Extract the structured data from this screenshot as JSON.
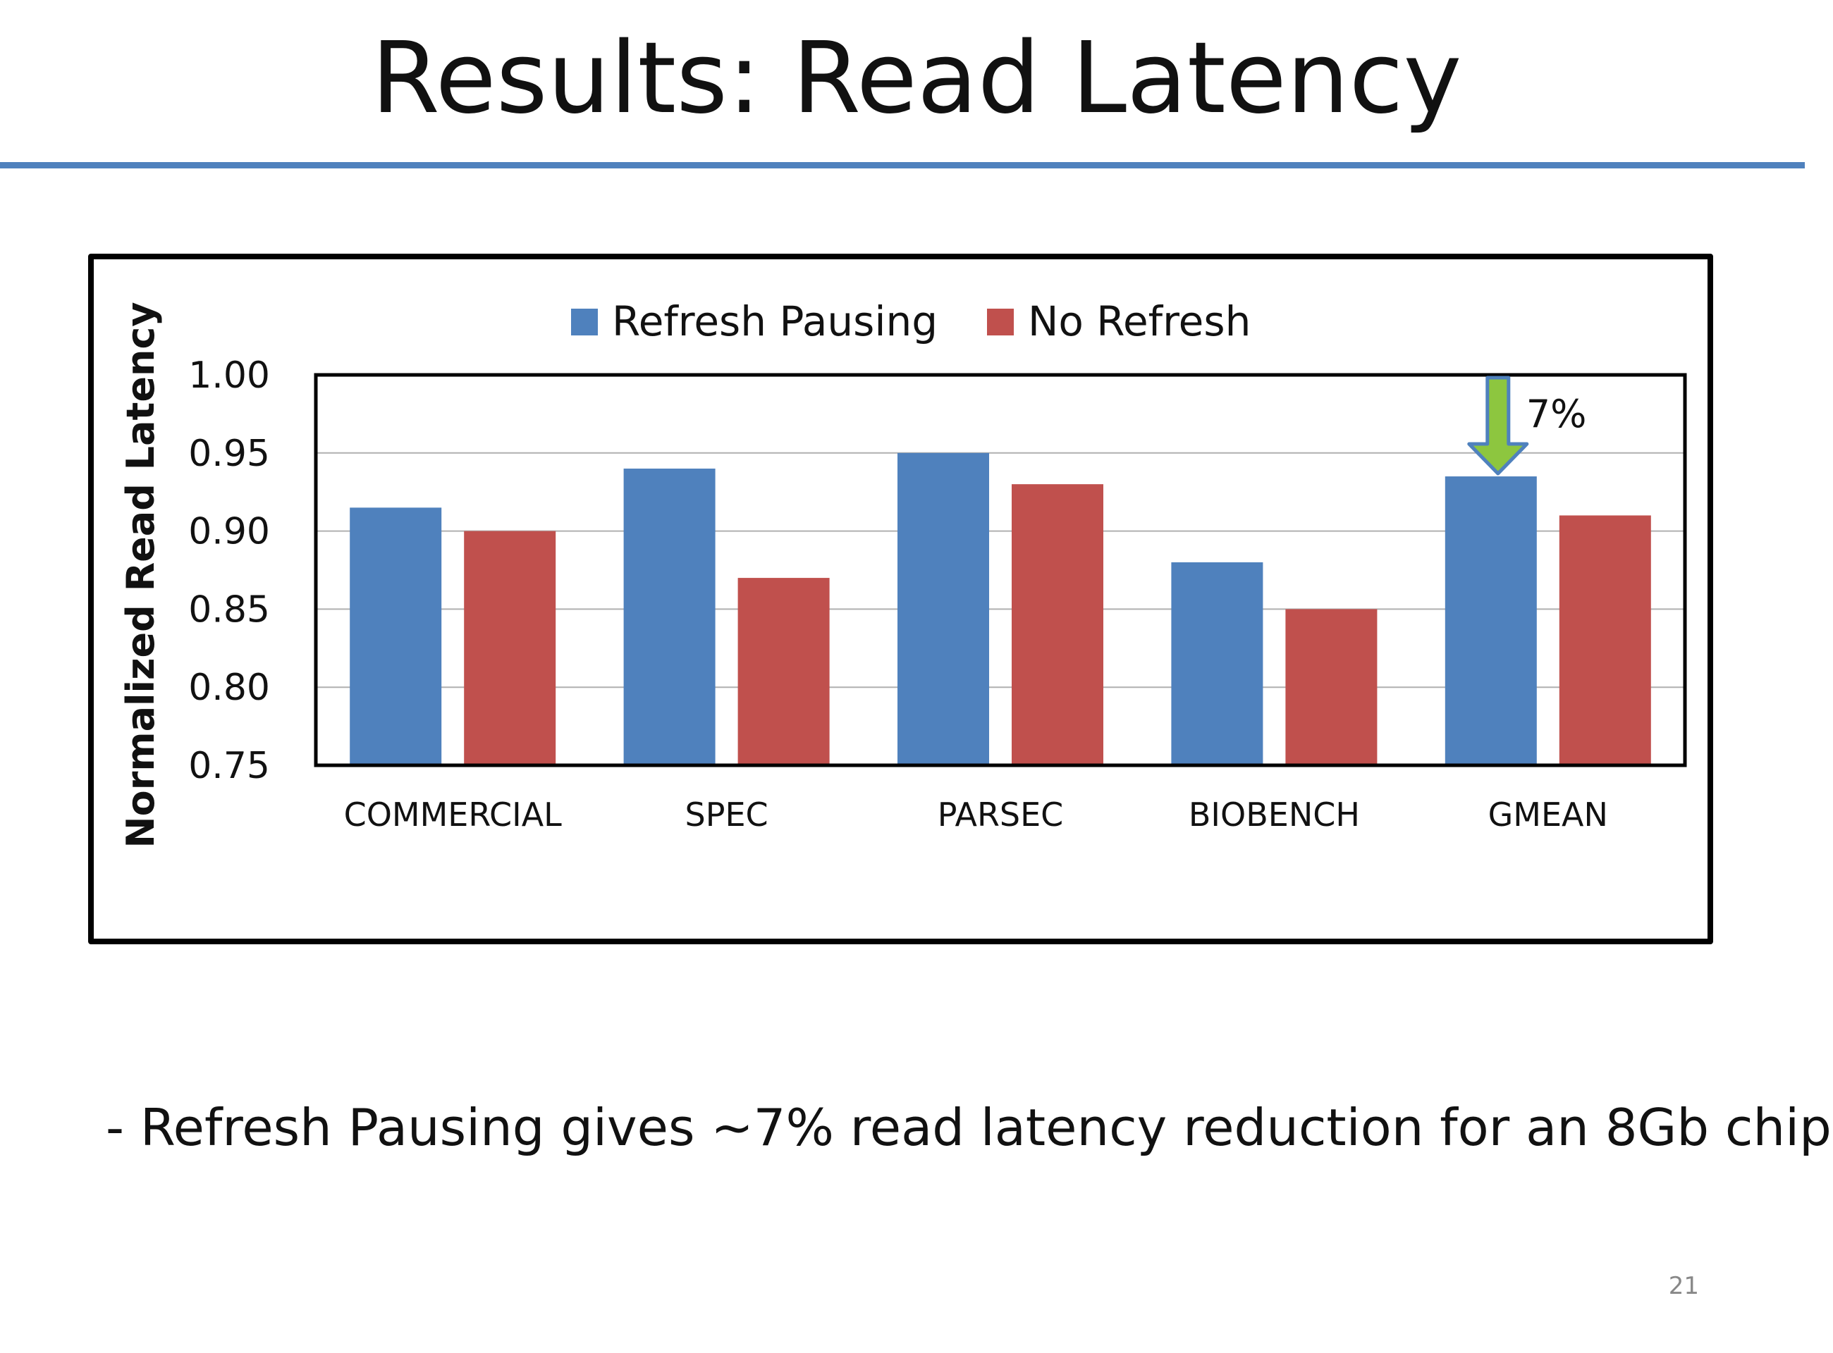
{
  "slide": {
    "title": "Results: Read Latency",
    "bullet": "- Refresh Pausing gives ~7% read latency reduction for an 8Gb chip",
    "page_number": "21"
  },
  "colors": {
    "accent_rule": "#4f81bd",
    "series_refresh_pausing": "#4f81bd",
    "series_no_refresh": "#c0504d",
    "arrow_fill": "#8dc63f",
    "arrow_stroke": "#4f81bd",
    "gridline": "#b0b0b0"
  },
  "chart_data": {
    "type": "bar",
    "title": "",
    "xlabel": "",
    "ylabel": "Normalized Read Latency",
    "categories": [
      "COMMERCIAL",
      "SPEC",
      "PARSEC",
      "BIOBENCH",
      "GMEAN"
    ],
    "series": [
      {
        "name": "Refresh Pausing",
        "values": [
          0.915,
          0.94,
          0.95,
          0.88,
          0.935
        ]
      },
      {
        "name": "No Refresh",
        "values": [
          0.9,
          0.87,
          0.93,
          0.85,
          0.91
        ]
      }
    ],
    "ylim": [
      0.75,
      1.0
    ],
    "yticks": [
      0.75,
      0.8,
      0.85,
      0.9,
      0.95,
      1.0
    ],
    "ytick_labels": [
      "0.75",
      "0.80",
      "0.85",
      "0.90",
      "0.95",
      "1.00"
    ],
    "grid": true,
    "legend": "top-center",
    "annotation": {
      "text": "7%",
      "category": "GMEAN",
      "series": "Refresh Pausing",
      "from_value": 1.0,
      "to_value": 0.935,
      "icon": "down-arrow-icon"
    }
  }
}
